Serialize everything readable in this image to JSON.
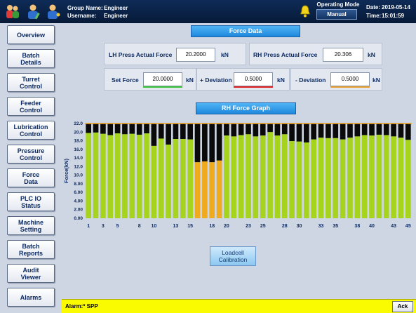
{
  "header": {
    "group_label": "Group Name:",
    "group_value": "Engineer",
    "user_label": "Username:",
    "user_value": "Engineer",
    "operating_mode_label": "Operating Mode",
    "operating_mode_value": "Manual",
    "date_label": "Date:",
    "date_value": "2019-05-14",
    "time_label": "Time:",
    "time_value": "15:01:59",
    "icons": [
      "users-group-icon",
      "user-edit-icon",
      "user-key-icon",
      "alarm-bell-icon"
    ]
  },
  "sidebar": {
    "items": [
      {
        "label": "Overview",
        "name": "overview"
      },
      {
        "label": "Batch\nDetails",
        "name": "batch-details"
      },
      {
        "label": "Turret\nControl",
        "name": "turret-control"
      },
      {
        "label": "Feeder\nControl",
        "name": "feeder-control"
      },
      {
        "label": "Lubrication\nControl",
        "name": "lubrication-control"
      },
      {
        "label": "Pressure\nControl",
        "name": "pressure-control"
      },
      {
        "label": "Force\nData",
        "name": "force-data"
      },
      {
        "label": "PLC IO\nStatus",
        "name": "plc-io-status"
      },
      {
        "label": "Machine\nSetting",
        "name": "machine-setting"
      },
      {
        "label": "Batch\nReports",
        "name": "batch-reports"
      },
      {
        "label": "Audit\nViewer",
        "name": "audit-viewer"
      },
      {
        "label": "Alarms",
        "name": "alarms"
      }
    ]
  },
  "force_data": {
    "title": "Force Data",
    "lh_label": "LH Press Actual Force",
    "lh_value": "20.2000",
    "rh_label": "RH Press Actual Force",
    "rh_value": "20.306",
    "set_label": "Set Force",
    "set_value": "20.0000",
    "plus_dev_label": "+ Deviation",
    "plus_dev_value": "0.5000",
    "minus_dev_label": "- Deviation",
    "minus_dev_value": "0.5000",
    "unit": "kN",
    "colors": {
      "set_underline": "#3cc43c",
      "plus_underline": "#e02020",
      "minus_underline": "#e8a030"
    }
  },
  "graph": {
    "title": "RH Force Graph"
  },
  "chart_data": {
    "type": "bar",
    "ylabel": "Force(kN)",
    "ylim": [
      0,
      22
    ],
    "yticks": [
      "0.00",
      "2.00",
      "4.00",
      "6.00",
      "8.00",
      "10.0",
      "12.0",
      "14.0",
      "16.0",
      "18.0",
      "20.0",
      "22.0"
    ],
    "xtick_labels": [
      "1",
      "3",
      "5",
      "8",
      "10",
      "13",
      "15",
      "18",
      "20",
      "23",
      "25",
      "28",
      "30",
      "33",
      "35",
      "38",
      "40",
      "43",
      "45"
    ],
    "categories": [
      "1",
      "2",
      "3",
      "4",
      "5",
      "6",
      "7",
      "8",
      "9",
      "10",
      "11",
      "12",
      "13",
      "14",
      "15",
      "16",
      "17",
      "18",
      "19",
      "20",
      "21",
      "22",
      "23",
      "24",
      "25",
      "26",
      "27",
      "28",
      "29",
      "30",
      "31",
      "32",
      "33",
      "34",
      "35",
      "36",
      "37",
      "38",
      "39",
      "40",
      "41",
      "42",
      "43",
      "44",
      "45"
    ],
    "values": [
      19.8,
      19.9,
      19.6,
      19.3,
      19.7,
      19.5,
      19.6,
      19.4,
      19.7,
      16.8,
      18.5,
      17.1,
      18.4,
      18.4,
      18.3,
      13.0,
      13.2,
      13.0,
      13.4,
      19.2,
      19.0,
      19.3,
      19.5,
      19.0,
      19.2,
      20.0,
      19.2,
      19.5,
      17.9,
      17.8,
      17.6,
      18.3,
      18.7,
      18.6,
      18.6,
      18.3,
      18.7,
      19.0,
      19.3,
      19.2,
      19.4,
      19.3,
      19.0,
      18.7,
      18.2
    ],
    "max_value": 22.0,
    "colors": {
      "normal": "#a6d41c",
      "rejected": "#f0aa1e",
      "remainder": "#0a0a0a",
      "limit_line": "#f2a21a"
    },
    "rejected_threshold": 14.0
  },
  "loadcell_button": {
    "label": "Loadcell\nCalibration"
  },
  "alarm": {
    "text": "Alarm:* SPP",
    "ack_label": "Ack",
    "color": "#fafa00"
  }
}
